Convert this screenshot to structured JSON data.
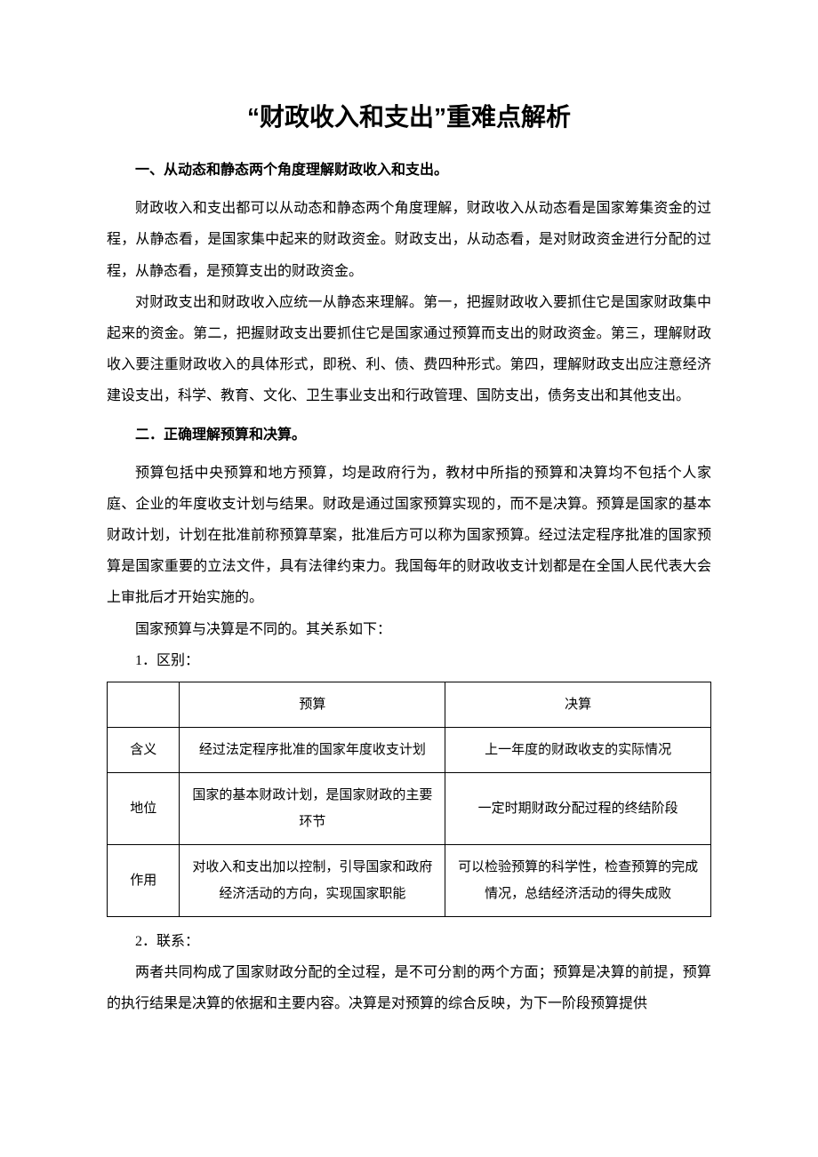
{
  "title": "“财政收入和支出”重难点解析",
  "sections": {
    "s1_heading": "一、从动态和静态两个角度理解财政收入和支出。",
    "s1_p1": "财政收入和支出都可以从动态和静态两个角度理解，财政收入从动态看是国家筹集资金的过程，从静态看，是国家集中起来的财政资金。财政支出，从动态看，是对财政资金进行分配的过程，从静态看，是预算支出的财政资金。",
    "s1_p2": "对财政支出和财政收入应统一从静态来理解。第一，把握财政收入要抓住它是国家财政集中起来的资金。第二，把握财政支出要抓住它是国家通过预算而支出的财政资金。第三，理解财政收入要注重财政收入的具体形式，即税、利、债、费四种形式。第四，理解财政支出应注意经济建设支出，科学、教育、文化、卫生事业支出和行政管理、国防支出，债务支出和其他支出。",
    "s2_heading": "二．正确理解预算和决算。",
    "s2_p1": "预算包括中央预算和地方预算，均是政府行为，教材中所指的预算和决算均不包括个人家庭、企业的年度收支计划与结果。财政是通过国家预算实现的，而不是决算。预算是国家的基本财政计划，计划在批准前称预算草案，批准后方可以称为国家预算。经过法定程序批准的国家预算是国家重要的立法文件，具有法律约束力。我国每年的财政收支计划都是在全国人民代表大会上审批后才开始实施的。",
    "s2_p2": "国家预算与决算是不同的。其关系如下：",
    "s2_sub1": "1．区别：",
    "s2_sub2": "2．联系：",
    "s2_p3": "两者共同构成了国家财政分配的全过程，是不可分割的两个方面；预算是决算的前提，预算的执行结果是决算的依据和主要内容。决算是对预算的综合反映，为下一阶段预算提供"
  },
  "table": {
    "header_blank": "",
    "header_a": "预算",
    "header_b": "决算",
    "rows": [
      {
        "label": "含义",
        "a": "经过法定程序批准的国家年度收支计划",
        "b": "上一年度的财政收支的实际情况"
      },
      {
        "label": "地位",
        "a": "国家的基本财政计划，是国家财政的主要环节",
        "b": "一定时期财政分配过程的终结阶段"
      },
      {
        "label": "作用",
        "a": "对收入和支出加以控制，引导国家和政府经济活动的方向，实现国家职能",
        "b": "可以检验预算的科学性，检查预算的完成情况，总结经济活动的得失成败"
      }
    ]
  }
}
